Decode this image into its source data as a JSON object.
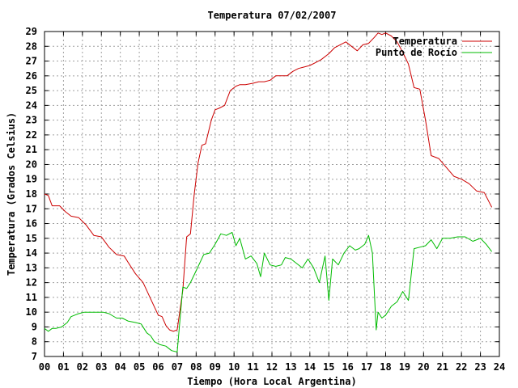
{
  "chart_data": {
    "type": "line",
    "title": "Temperatura 07/02/2007",
    "xlabel": "Tiempo (Hora Local Argentina)",
    "ylabel": "Temperatura (Grados Celsius)",
    "xlim": [
      0,
      24
    ],
    "ylim": [
      7,
      29
    ],
    "grid": true,
    "legend_position": "top-right",
    "x_ticks": [
      "00",
      "01",
      "02",
      "03",
      "04",
      "05",
      "06",
      "07",
      "08",
      "09",
      "10",
      "11",
      "12",
      "13",
      "14",
      "15",
      "16",
      "17",
      "18",
      "19",
      "20",
      "21",
      "22",
      "23",
      "24"
    ],
    "y_ticks": [
      "7",
      "8",
      "9",
      "10",
      "11",
      "12",
      "13",
      "14",
      "15",
      "16",
      "17",
      "18",
      "19",
      "20",
      "21",
      "22",
      "23",
      "24",
      "25",
      "26",
      "27",
      "28",
      "29"
    ],
    "series": [
      {
        "name": "Temperatura",
        "color": "#cc0000",
        "x": [
          0.0,
          0.2,
          0.4,
          0.8,
          1.1,
          1.4,
          1.8,
          2.2,
          2.6,
          3.0,
          3.4,
          3.8,
          4.2,
          4.4,
          4.8,
          5.2,
          5.6,
          6.0,
          6.2,
          6.4,
          6.6,
          6.8,
          7.0,
          7.3,
          7.5,
          7.7,
          7.9,
          8.1,
          8.3,
          8.5,
          8.8,
          9.0,
          9.2,
          9.5,
          9.8,
          10.1,
          10.3,
          10.6,
          11.0,
          11.3,
          11.6,
          11.9,
          12.2,
          12.5,
          12.8,
          13.1,
          13.4,
          13.7,
          14.0,
          14.3,
          14.6,
          15.0,
          15.3,
          15.6,
          15.9,
          16.2,
          16.5,
          16.8,
          17.1,
          17.4,
          17.6,
          17.8,
          18.0,
          18.3,
          18.6,
          18.9,
          19.2,
          19.5,
          19.8,
          20.1,
          20.4,
          20.8,
          21.2,
          21.6,
          22.0,
          22.4,
          22.8,
          23.2,
          23.6
        ],
        "values": [
          18.0,
          17.9,
          17.2,
          17.2,
          16.8,
          16.5,
          16.4,
          15.9,
          15.2,
          15.1,
          14.4,
          13.9,
          13.8,
          13.4,
          12.6,
          12.0,
          10.9,
          9.8,
          9.7,
          9.1,
          8.8,
          8.7,
          8.8,
          11.5,
          15.1,
          15.3,
          18.0,
          20.1,
          21.3,
          21.4,
          23.0,
          23.7,
          23.8,
          24.0,
          25.0,
          25.3,
          25.4,
          25.4,
          25.5,
          25.6,
          25.6,
          25.7,
          26.0,
          26.0,
          26.0,
          26.3,
          26.5,
          26.6,
          26.7,
          26.9,
          27.1,
          27.5,
          27.9,
          28.1,
          28.3,
          28.0,
          27.7,
          28.1,
          28.2,
          28.6,
          28.9,
          28.8,
          28.9,
          28.7,
          28.3,
          27.6,
          26.8,
          25.2,
          25.1,
          23.0,
          20.6,
          20.4,
          19.8,
          19.2,
          19.0,
          18.7,
          18.2,
          18.1,
          17.1
        ]
      },
      {
        "name": "Punto de Rocío",
        "color": "#00bb00",
        "x": [
          0.0,
          0.2,
          0.4,
          0.6,
          0.9,
          1.2,
          1.4,
          1.6,
          1.8,
          2.1,
          2.4,
          2.8,
          3.1,
          3.4,
          3.8,
          4.1,
          4.4,
          4.8,
          5.1,
          5.4,
          5.6,
          5.8,
          6.1,
          6.4,
          6.7,
          7.0,
          7.3,
          7.5,
          7.7,
          8.0,
          8.4,
          8.7,
          9.0,
          9.3,
          9.6,
          9.9,
          10.1,
          10.3,
          10.6,
          10.9,
          11.2,
          11.4,
          11.6,
          11.9,
          12.2,
          12.5,
          12.7,
          13.0,
          13.3,
          13.6,
          13.9,
          14.2,
          14.5,
          14.8,
          15.0,
          15.2,
          15.5,
          15.8,
          16.1,
          16.4,
          16.6,
          16.9,
          17.1,
          17.3,
          17.5,
          17.6,
          17.8,
          18.0,
          18.3,
          18.6,
          18.9,
          19.2,
          19.5,
          19.8,
          20.1,
          20.4,
          20.7,
          21.0,
          21.4,
          21.8,
          22.2,
          22.6,
          23.0,
          23.3,
          23.6
        ],
        "values": [
          8.9,
          8.7,
          8.9,
          8.9,
          9.0,
          9.3,
          9.7,
          9.8,
          9.9,
          10.0,
          10.0,
          10.0,
          10.0,
          9.9,
          9.6,
          9.6,
          9.4,
          9.3,
          9.2,
          8.6,
          8.4,
          8.0,
          7.8,
          7.7,
          7.4,
          7.3,
          11.7,
          11.6,
          12.0,
          12.8,
          13.9,
          14.0,
          14.6,
          15.3,
          15.2,
          15.4,
          14.5,
          15.0,
          13.6,
          13.8,
          13.3,
          12.4,
          14.0,
          13.2,
          13.1,
          13.2,
          13.7,
          13.6,
          13.3,
          13.0,
          13.6,
          13.0,
          12.0,
          13.8,
          10.8,
          13.6,
          13.2,
          14.0,
          14.5,
          14.2,
          14.3,
          14.6,
          15.2,
          14.0,
          8.8,
          10.0,
          9.6,
          9.8,
          10.4,
          10.7,
          11.4,
          10.8,
          14.3,
          14.4,
          14.5,
          14.9,
          14.3,
          15.0,
          15.0,
          15.1,
          15.1,
          14.8,
          15.0,
          14.6,
          14.1
        ]
      }
    ]
  }
}
